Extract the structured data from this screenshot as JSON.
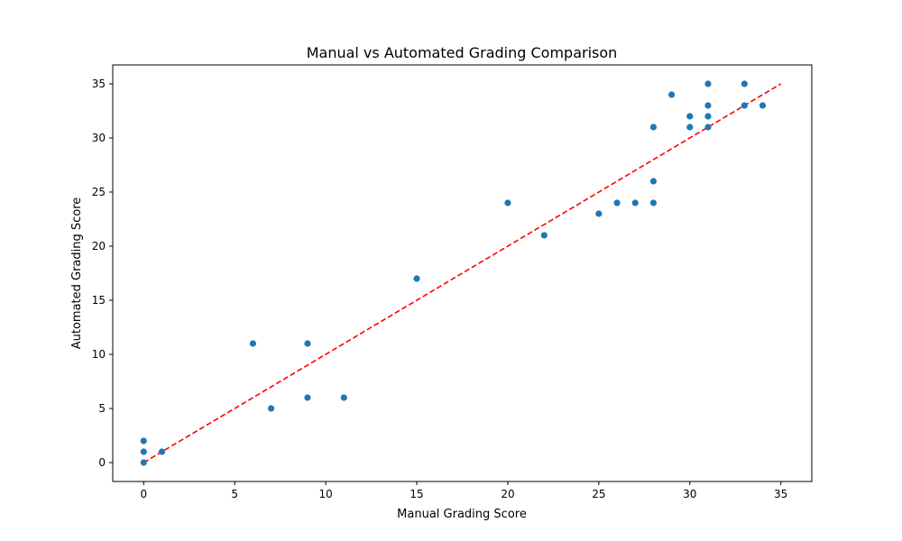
{
  "chart_data": {
    "type": "scatter",
    "title": "Manual vs Automated Grading Comparison",
    "xlabel": "Manual Grading Score",
    "ylabel": "Automated Grading Score",
    "xlim": [
      -1.7,
      36.7
    ],
    "ylim": [
      -1.75,
      36.75
    ],
    "xticks": [
      0,
      5,
      10,
      15,
      20,
      25,
      30,
      35
    ],
    "yticks": [
      0,
      5,
      10,
      15,
      20,
      25,
      30,
      35
    ],
    "grid": false,
    "point_color": "#1f77b4",
    "reference_line": {
      "x": [
        0,
        35
      ],
      "y": [
        0,
        35
      ],
      "color": "#ff0000",
      "style": "dashed"
    },
    "points": [
      {
        "x": 0,
        "y": 0
      },
      {
        "x": 0,
        "y": 1
      },
      {
        "x": 0,
        "y": 2
      },
      {
        "x": 1,
        "y": 1
      },
      {
        "x": 6,
        "y": 11
      },
      {
        "x": 7,
        "y": 5
      },
      {
        "x": 9,
        "y": 11
      },
      {
        "x": 9,
        "y": 6
      },
      {
        "x": 11,
        "y": 6
      },
      {
        "x": 15,
        "y": 17
      },
      {
        "x": 20,
        "y": 24
      },
      {
        "x": 22,
        "y": 21
      },
      {
        "x": 25,
        "y": 23
      },
      {
        "x": 26,
        "y": 24
      },
      {
        "x": 27,
        "y": 24
      },
      {
        "x": 28,
        "y": 24
      },
      {
        "x": 28,
        "y": 26
      },
      {
        "x": 28,
        "y": 31
      },
      {
        "x": 29,
        "y": 34
      },
      {
        "x": 30,
        "y": 32
      },
      {
        "x": 30,
        "y": 31
      },
      {
        "x": 31,
        "y": 35
      },
      {
        "x": 31,
        "y": 33
      },
      {
        "x": 31,
        "y": 32
      },
      {
        "x": 31,
        "y": 31
      },
      {
        "x": 33,
        "y": 35
      },
      {
        "x": 33,
        "y": 33
      },
      {
        "x": 34,
        "y": 33
      }
    ]
  }
}
